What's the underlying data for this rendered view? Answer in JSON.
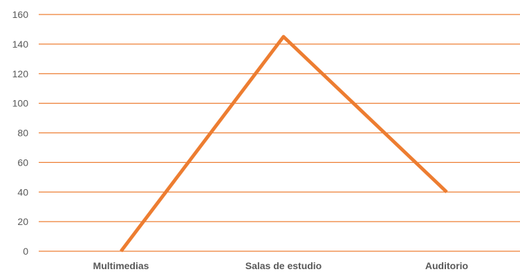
{
  "chart_data": {
    "type": "line",
    "title": "",
    "xlabel": "",
    "ylabel": "",
    "categories": [
      "Multimedias",
      "Salas de estudio",
      "Auditorio"
    ],
    "values": [
      0,
      145,
      40
    ],
    "ylim": [
      0,
      160
    ],
    "yticks": [
      "0",
      "20",
      "40",
      "60",
      "80",
      "100",
      "120",
      "140",
      "160"
    ],
    "grid": true,
    "legend": "none",
    "colors": {
      "line": "#ED7D31",
      "grid": "#ED7D31",
      "text": "#595959"
    }
  }
}
